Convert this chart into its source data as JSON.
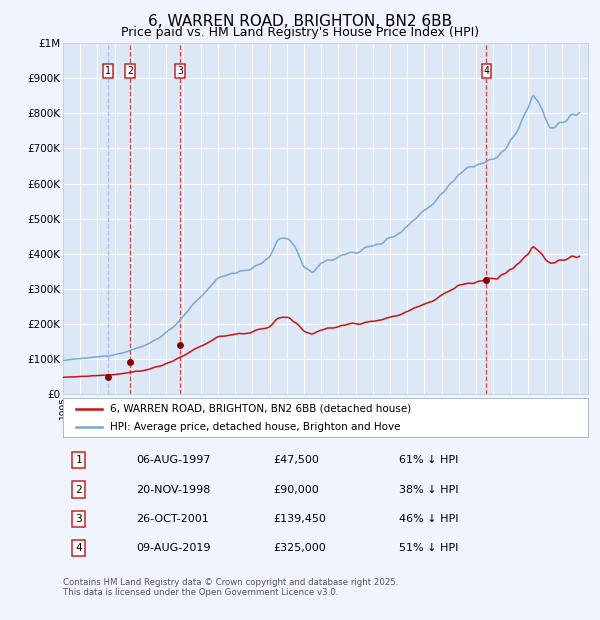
{
  "title": "6, WARREN ROAD, BRIGHTON, BN2 6BB",
  "subtitle": "Price paid vs. HM Land Registry's House Price Index (HPI)",
  "title_fontsize": 11,
  "subtitle_fontsize": 9,
  "bg_color": "#f0f4ff",
  "plot_bg_color": "#dce8f5",
  "grid_color": "#ffffff",
  "sale_dates_num": [
    1997.597,
    1998.893,
    2001.819,
    2019.603
  ],
  "sale_prices": [
    47500,
    90000,
    139450,
    325000
  ],
  "sale_labels": [
    "1",
    "2",
    "3",
    "4"
  ],
  "legend_entries": [
    "6, WARREN ROAD, BRIGHTON, BN2 6BB (detached house)",
    "HPI: Average price, detached house, Brighton and Hove"
  ],
  "table_rows": [
    [
      "1",
      "06-AUG-1997",
      "£47,500",
      "61% ↓ HPI"
    ],
    [
      "2",
      "20-NOV-1998",
      "£90,000",
      "38% ↓ HPI"
    ],
    [
      "3",
      "26-OCT-2001",
      "£139,450",
      "46% ↓ HPI"
    ],
    [
      "4",
      "09-AUG-2019",
      "£325,000",
      "51% ↓ HPI"
    ]
  ],
  "footer": "Contains HM Land Registry data © Crown copyright and database right 2025.\nThis data is licensed under the Open Government Licence v3.0.",
  "ylim": [
    0,
    1000000
  ],
  "ytick_vals": [
    0,
    100000,
    200000,
    300000,
    400000,
    500000,
    600000,
    700000,
    800000,
    900000,
    1000000
  ],
  "ytick_labels": [
    "£0",
    "£100K",
    "£200K",
    "£300K",
    "£400K",
    "£500K",
    "£600K",
    "£700K",
    "£800K",
    "£900K",
    "£1M"
  ],
  "red_line_color": "#cc1111",
  "blue_line_color": "#7aa8d0",
  "marker_color": "#880000",
  "vline_color_1": "#aabbdd",
  "vline_color_234": "#dd3333"
}
